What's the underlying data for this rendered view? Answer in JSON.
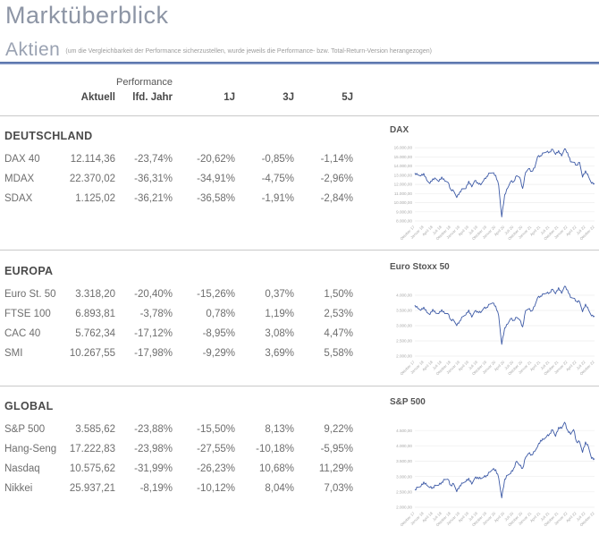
{
  "page": {
    "title": "Marktüberblick",
    "section_title": "Aktien",
    "section_note": "(um die Vergleichbarkeit der Performance sicherzustellen, wurde jeweils die Performance- bzw. Total-Return-Version herangezogen)"
  },
  "table": {
    "group_header": "Performance",
    "columns": [
      "Aktuell",
      "lfd. Jahr",
      "1J",
      "3J",
      "5J"
    ],
    "sections": [
      {
        "name": "DEUTSCHLAND",
        "rows": [
          {
            "label": "DAX 40",
            "values": [
              "12.114,36",
              "-23,74%",
              "-20,62%",
              "-0,85%",
              "-1,14%"
            ]
          },
          {
            "label": "MDAX",
            "values": [
              "22.370,02",
              "-36,31%",
              "-34,91%",
              "-4,75%",
              "-2,96%"
            ]
          },
          {
            "label": "SDAX",
            "values": [
              "1.125,02",
              "-36,21%",
              "-36,58%",
              "-1,91%",
              "-2,84%"
            ]
          }
        ]
      },
      {
        "name": "EUROPA",
        "rows": [
          {
            "label": "Euro St. 50",
            "values": [
              "3.318,20",
              "-20,40%",
              "-15,26%",
              "0,37%",
              "1,50%"
            ]
          },
          {
            "label": "FTSE 100",
            "values": [
              "6.893,81",
              "-3,78%",
              "0,78%",
              "1,19%",
              "2,53%"
            ]
          },
          {
            "label": "CAC 40",
            "values": [
              "5.762,34",
              "-17,12%",
              "-8,95%",
              "3,08%",
              "4,47%"
            ]
          },
          {
            "label": "SMI",
            "values": [
              "10.267,55",
              "-17,98%",
              "-9,29%",
              "3,69%",
              "5,58%"
            ]
          }
        ]
      },
      {
        "name": "GLOBAL",
        "rows": [
          {
            "label": "S&P 500",
            "values": [
              "3.585,62",
              "-23,88%",
              "-15,50%",
              "8,13%",
              "9,22%"
            ]
          },
          {
            "label": "Hang-Seng",
            "values": [
              "17.222,83",
              "-23,98%",
              "-27,55%",
              "-10,18%",
              "-5,95%"
            ]
          },
          {
            "label": "Nasdaq",
            "values": [
              "10.575,62",
              "-31,99%",
              "-26,23%",
              "10,68%",
              "11,29%"
            ]
          },
          {
            "label": "Nikkei",
            "values": [
              "25.937,21",
              "-8,19%",
              "-10,12%",
              "8,04%",
              "7,03%"
            ]
          }
        ]
      }
    ]
  },
  "colors": {
    "accent_rule": "#47649f",
    "line": "#3d5aa6",
    "gridline": "#ededed",
    "axis_label": "#a8a8a8",
    "heading": "#8d95a5"
  },
  "chart_data": [
    {
      "type": "line",
      "title": "DAX",
      "ylim": [
        8000,
        16500
      ],
      "ytick_values": [
        16000,
        15000,
        14000,
        13000,
        12000,
        11000,
        10000,
        9000,
        8000
      ],
      "ytick_labels": [
        "16.000,00",
        "15.000,00",
        "14.000,00",
        "13.000,00",
        "12.000,00",
        "11.000,00",
        "10.000,00",
        "9.000,00",
        "8.000,00"
      ],
      "x_labels": [
        "Oktober 17",
        "Januar 18",
        "April 18",
        "Juli 18",
        "Oktober 18",
        "Januar 19",
        "April 19",
        "Juli 19",
        "Oktober 19",
        "Januar 20",
        "April 20",
        "Juli 20",
        "Oktober 20",
        "Januar 21",
        "April 21",
        "Juli 21",
        "Oktober 21",
        "Januar 22",
        "April 22",
        "Juli 22",
        "Oktober 22"
      ],
      "values": [
        13230,
        13024,
        12918,
        13189,
        12436,
        12097,
        12612,
        12605,
        12306,
        12806,
        12364,
        12247,
        11448,
        11257,
        10559,
        11173,
        11516,
        11526,
        12344,
        11727,
        12399,
        12189,
        11939,
        12428,
        12867,
        13236,
        13249,
        12982,
        11890,
        8442,
        10862,
        11587,
        12311,
        12313,
        12945,
        12761,
        11556,
        13291,
        13719,
        13432,
        13786,
        15008,
        15136,
        15421,
        15531,
        15544,
        15835,
        15261,
        15689,
        15100,
        15885,
        15471,
        14461,
        14415,
        14098,
        14388,
        12784,
        13484,
        12835,
        12114,
        12114
      ]
    },
    {
      "type": "line",
      "title": "Euro Stoxx 50",
      "ylim": [
        2000,
        4500
      ],
      "ytick_values": [
        4000,
        3500,
        3000,
        2500,
        2000
      ],
      "ytick_labels": [
        "4.000,00",
        "3.500,00",
        "3.000,00",
        "2.500,00",
        "2.000,00"
      ],
      "x_labels": [
        "Oktober 17",
        "Januar 18",
        "April 18",
        "Juli 18",
        "Oktober 18",
        "Januar 19",
        "April 19",
        "Juli 19",
        "Oktober 19",
        "Januar 20",
        "April 20",
        "Juli 20",
        "Oktober 20",
        "Januar 21",
        "April 21",
        "Juli 21",
        "Oktober 21",
        "Januar 22",
        "April 22",
        "Juli 22",
        "Oktober 22"
      ],
      "values": [
        3674,
        3570,
        3504,
        3609,
        3439,
        3362,
        3537,
        3407,
        3396,
        3525,
        3393,
        3399,
        3198,
        3173,
        3001,
        3160,
        3298,
        3352,
        3515,
        3280,
        3474,
        3467,
        3427,
        3569,
        3604,
        3704,
        3745,
        3641,
        3329,
        2385,
        2928,
        3050,
        3234,
        3174,
        3273,
        3193,
        2958,
        3493,
        3553,
        3481,
        3636,
        3919,
        3974,
        4039,
        4064,
        4089,
        4196,
        4048,
        4251,
        4063,
        4298,
        4175,
        3924,
        3903,
        3803,
        3789,
        3455,
        3708,
        3517,
        3318,
        3318
      ]
    },
    {
      "type": "line",
      "title": "S&P 500",
      "ylim": [
        2000,
        5000
      ],
      "ytick_values": [
        4500,
        4000,
        3500,
        3000,
        2500,
        2000
      ],
      "ytick_labels": [
        "4.500,00",
        "4.000,00",
        "3.500,00",
        "3.000,00",
        "2.500,00",
        "2.000,00"
      ],
      "x_labels": [
        "Oktober 17",
        "Januar 18",
        "April 18",
        "Juli 18",
        "Oktober 18",
        "Januar 19",
        "April 19",
        "Juli 19",
        "Oktober 19",
        "Januar 20",
        "April 20",
        "Juli 20",
        "Oktober 20",
        "Januar 21",
        "April 21",
        "Juli 21",
        "Oktober 21",
        "Januar 22",
        "April 22",
        "Juli 22",
        "Oktober 22"
      ],
      "values": [
        2575,
        2648,
        2674,
        2824,
        2714,
        2641,
        2648,
        2705,
        2718,
        2816,
        2902,
        2914,
        2712,
        2760,
        2507,
        2704,
        2784,
        2834,
        2946,
        2752,
        2942,
        2980,
        2926,
        2977,
        3038,
        3141,
        3231,
        3226,
        2954,
        2305,
        2912,
        3044,
        3100,
        3271,
        3500,
        3363,
        3270,
        3622,
        3756,
        3714,
        3811,
        3973,
        4181,
        4204,
        4298,
        4395,
        4523,
        4308,
        4605,
        4567,
        4766,
        4516,
        4374,
        4530,
        4132,
        4132,
        3785,
        4130,
        3955,
        3586,
        3586
      ]
    }
  ]
}
